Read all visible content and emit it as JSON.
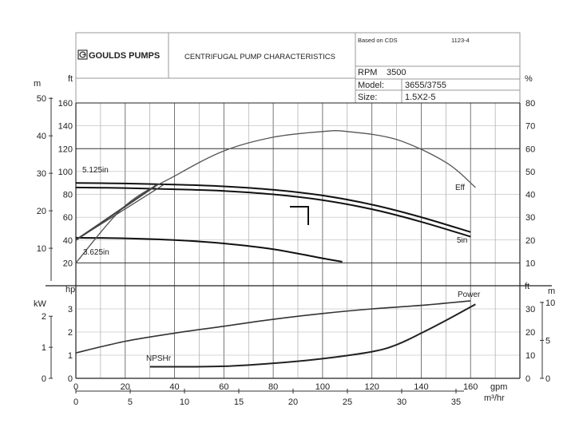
{
  "header": {
    "logo_text": "GOULDS PUMPS",
    "title": "CENTRIFUGAL PUMP CHARACTERISTICS",
    "based_on_label": "Based on CDS",
    "curve_number": "1123-4",
    "rpm_label": "RPM",
    "rpm_value": "3500",
    "model_label": "Model:",
    "model_value": "3655/3755",
    "size_label": "Size:",
    "size_value": "1.5X2-5"
  },
  "chart_data": [
    {
      "type": "line",
      "panel": "head-efficiency",
      "x_unit": "gpm",
      "xlim": [
        0,
        180
      ],
      "y_left_unit": "ft",
      "y_left_meters_unit": "m",
      "y_right_unit": "%",
      "ylim_ft": [
        0,
        160
      ],
      "ylim_pct": [
        0,
        80
      ],
      "ft_ticks": [
        "20",
        "40",
        "60",
        "80",
        "100",
        "120",
        "140",
        "160"
      ],
      "m_ticks": [
        "10",
        "20",
        "30",
        "40",
        "50"
      ],
      "pct_ticks": [
        "10",
        "20",
        "30",
        "40",
        "50",
        "60",
        "70",
        "80"
      ],
      "series": [
        {
          "name": "5.125in",
          "unit": "ft",
          "x": [
            0,
            20,
            40,
            60,
            80,
            100,
            120,
            140,
            160
          ],
          "y": [
            90,
            89.5,
            88.5,
            87,
            84,
            79,
            71,
            60,
            47
          ]
        },
        {
          "name": "5in",
          "unit": "ft",
          "x": [
            0,
            20,
            40,
            60,
            80,
            100,
            120,
            140,
            160
          ],
          "y": [
            86,
            85.5,
            84.5,
            83,
            80,
            75,
            67,
            56,
            43
          ]
        },
        {
          "name": "3.625in",
          "unit": "ft",
          "x": [
            0,
            20,
            40,
            60,
            80,
            100,
            108
          ],
          "y": [
            42,
            41.5,
            40,
            37,
            32,
            24,
            21
          ]
        },
        {
          "name": "Eff",
          "unit": "%",
          "x": [
            0,
            20,
            40,
            60,
            80,
            100,
            110,
            130,
            150,
            162
          ],
          "y": [
            10,
            35,
            48,
            59,
            65,
            67.5,
            67.5,
            64,
            54,
            43
          ]
        }
      ],
      "annotations": [
        {
          "text": "5.125in"
        },
        {
          "text": "3.625in"
        },
        {
          "text": "Eff"
        },
        {
          "text": "5in"
        }
      ]
    },
    {
      "type": "line",
      "panel": "power-npshr",
      "xlabel": "gpm",
      "xlabel2": "m³/hr",
      "xlim": [
        0,
        180
      ],
      "x_ticks": [
        "0",
        "20",
        "40",
        "60",
        "80",
        "100",
        "120",
        "140",
        "160"
      ],
      "x2_ticks": [
        "0",
        "5",
        "10",
        "15",
        "20",
        "25",
        "30",
        "35"
      ],
      "y_left_unit": "hp",
      "y_left_kw_unit": "kW",
      "y_right_unit": "ft",
      "y_right_meters_unit": "m",
      "ylim_hp": [
        0,
        4
      ],
      "ylim_ft": [
        0,
        40
      ],
      "hp_ticks": [
        "0",
        "1",
        "2",
        "3"
      ],
      "kw_ticks": [
        "0",
        "1",
        "2"
      ],
      "ft_ticks": [
        "0",
        "10",
        "20",
        "30"
      ],
      "m_ticks": [
        "0",
        "5",
        "10"
      ],
      "series": [
        {
          "name": "Power",
          "unit": "hp",
          "x": [
            0,
            20,
            40,
            60,
            80,
            100,
            120,
            140,
            160
          ],
          "y": [
            1.1,
            1.6,
            1.95,
            2.25,
            2.55,
            2.8,
            3.0,
            3.15,
            3.35
          ]
        },
        {
          "name": "NPSHr",
          "unit": "ft",
          "x": [
            30,
            40,
            60,
            80,
            100,
            120,
            130,
            140,
            150,
            162
          ],
          "y": [
            5,
            5,
            5.2,
            6.5,
            8.5,
            11.5,
            14.5,
            19.5,
            25,
            32
          ]
        }
      ],
      "annotations": [
        {
          "text": "Power"
        },
        {
          "text": "NPSHr"
        }
      ]
    }
  ]
}
